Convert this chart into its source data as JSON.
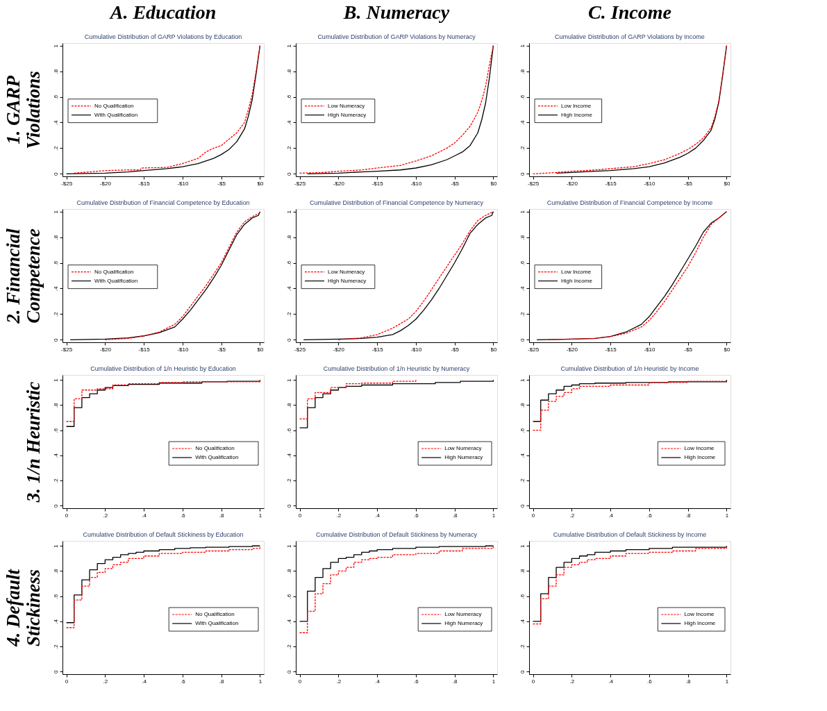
{
  "chart_data": [
    {
      "type": "line",
      "title": "Cumulative Distribution of GARP Violations by Education",
      "annotations": [
        "A. Education"
      ],
      "ylabel": "1. GARP Violations",
      "legend": "left",
      "grid": false,
      "xlim": [
        -25.5,
        0.5
      ],
      "xticks": [
        {
          "value": -25,
          "label": "-$25"
        },
        {
          "value": -20,
          "label": "-$20"
        },
        {
          "value": -15,
          "label": "-$15"
        },
        {
          "value": -10,
          "label": "-$10"
        },
        {
          "value": -5,
          "label": "-$5"
        },
        {
          "value": 0,
          "label": "$0"
        }
      ],
      "ylim": [
        -0.02,
        1.02
      ],
      "yticks": [
        0,
        {
          "value": 0.2,
          "label": ".2"
        },
        {
          "value": 0.4,
          "label": ".4"
        },
        {
          "value": 0.6,
          "label": ".6"
        },
        {
          "value": 0.8,
          "label": ".8"
        },
        1
      ],
      "series": [
        {
          "name": "No Qualification",
          "color": "#ff0000",
          "line_style": "dashed",
          "x": [
            -24,
            -22,
            -20,
            -17,
            -15.5,
            -15.3,
            -12,
            -10,
            -8,
            -7,
            -6,
            -5,
            -4,
            -3,
            -2,
            -1.5,
            -1,
            -0.5,
            0
          ],
          "values": [
            0.005,
            0.015,
            0.025,
            0.03,
            0.03,
            0.045,
            0.05,
            0.08,
            0.12,
            0.17,
            0.2,
            0.22,
            0.27,
            0.32,
            0.4,
            0.5,
            0.62,
            0.8,
            1
          ]
        },
        {
          "name": "With Qualification",
          "color": "#000000",
          "line_style": "solid",
          "x": [
            -25,
            -20,
            -17,
            -15,
            -12,
            -10,
            -8,
            -6,
            -5,
            -4,
            -3,
            -2,
            -1.5,
            -1,
            -0.5,
            0
          ],
          "values": [
            0,
            0.005,
            0.015,
            0.025,
            0.04,
            0.055,
            0.08,
            0.12,
            0.15,
            0.19,
            0.25,
            0.35,
            0.45,
            0.58,
            0.78,
            1
          ]
        }
      ]
    },
    {
      "type": "line",
      "title": "Cumulative Distribution of GARP Violations by Numeracy",
      "annotations": [
        "B. Numeracy"
      ],
      "legend": "left",
      "grid": false,
      "xlim": [
        -25.5,
        0.5
      ],
      "xticks": [
        {
          "value": -25,
          "label": "-$25"
        },
        {
          "value": -20,
          "label": "-$20"
        },
        {
          "value": -15,
          "label": "-$15"
        },
        {
          "value": -10,
          "label": "-$10"
        },
        {
          "value": -5,
          "label": "-$5"
        },
        {
          "value": 0,
          "label": "$0"
        }
      ],
      "ylim": [
        -0.02,
        1.02
      ],
      "yticks": [
        0,
        {
          "value": 0.2,
          "label": ".2"
        },
        {
          "value": 0.4,
          "label": ".4"
        },
        {
          "value": 0.6,
          "label": ".6"
        },
        {
          "value": 0.8,
          "label": ".8"
        },
        1
      ],
      "series": [
        {
          "name": "Low Numeracy",
          "color": "#ff0000",
          "line_style": "dashed",
          "x": [
            -25,
            -22,
            -20,
            -17,
            -15,
            -12,
            -10,
            -8,
            -7,
            -6,
            -5,
            -4,
            -3,
            -2,
            -1.5,
            -1,
            -0.5,
            0
          ],
          "values": [
            0.005,
            0.01,
            0.02,
            0.03,
            0.045,
            0.065,
            0.1,
            0.14,
            0.17,
            0.2,
            0.24,
            0.3,
            0.37,
            0.48,
            0.57,
            0.68,
            0.85,
            1
          ]
        },
        {
          "name": "High Numeracy",
          "color": "#000000",
          "line_style": "solid",
          "x": [
            -24,
            -20,
            -17,
            -15,
            -12,
            -10,
            -8,
            -6,
            -5,
            -4,
            -3,
            -2,
            -1.5,
            -1,
            -0.5,
            0
          ],
          "values": [
            0,
            0.005,
            0.015,
            0.02,
            0.03,
            0.045,
            0.07,
            0.11,
            0.14,
            0.17,
            0.22,
            0.32,
            0.42,
            0.55,
            0.75,
            1
          ]
        }
      ]
    },
    {
      "type": "line",
      "title": "Cumulative Distribution of GARP Violations by Income",
      "annotations": [
        "C. Income"
      ],
      "legend": "left",
      "grid": false,
      "xlim": [
        -25.5,
        0.5
      ],
      "xticks": [
        {
          "value": -25,
          "label": "-$25"
        },
        {
          "value": -20,
          "label": "-$20"
        },
        {
          "value": -15,
          "label": "-$15"
        },
        {
          "value": -10,
          "label": "-$10"
        },
        {
          "value": -5,
          "label": "-$5"
        },
        {
          "value": 0,
          "label": "$0"
        }
      ],
      "ylim": [
        -0.02,
        1.02
      ],
      "yticks": [
        0,
        {
          "value": 0.2,
          "label": ".2"
        },
        {
          "value": 0.4,
          "label": ".4"
        },
        {
          "value": 0.6,
          "label": ".6"
        },
        {
          "value": 0.8,
          "label": ".8"
        },
        1
      ],
      "series": [
        {
          "name": "Low Income",
          "color": "#ff0000",
          "line_style": "dashed",
          "x": [
            -25,
            -22,
            -20,
            -17,
            -15,
            -12,
            -10,
            -8,
            -6,
            -5,
            -4,
            -3,
            -2,
            -1.5,
            -1,
            -0.5,
            0
          ],
          "values": [
            0,
            0.01,
            0.02,
            0.03,
            0.04,
            0.055,
            0.08,
            0.11,
            0.16,
            0.19,
            0.23,
            0.28,
            0.36,
            0.45,
            0.57,
            0.78,
            1
          ]
        },
        {
          "name": "High Income",
          "color": "#000000",
          "line_style": "solid",
          "x": [
            -22,
            -20,
            -17,
            -15,
            -12,
            -10,
            -8,
            -6,
            -5,
            -4,
            -3,
            -2,
            -1.5,
            -1,
            -0.5,
            0
          ],
          "values": [
            0.005,
            0.01,
            0.02,
            0.025,
            0.04,
            0.055,
            0.085,
            0.13,
            0.16,
            0.2,
            0.26,
            0.34,
            0.43,
            0.56,
            0.77,
            1
          ]
        }
      ]
    },
    {
      "type": "line",
      "title": "Cumulative Distribution of Financial Competence by Education",
      "ylabel": "2. Financial Competence",
      "legend": "left",
      "grid": false,
      "xlim": [
        -25.5,
        0.5
      ],
      "xticks": [
        {
          "value": -25,
          "label": "-$25"
        },
        {
          "value": -20,
          "label": "-$20"
        },
        {
          "value": -15,
          "label": "-$15"
        },
        {
          "value": -10,
          "label": "-$10"
        },
        {
          "value": -5,
          "label": "-$5"
        },
        {
          "value": 0,
          "label": "$0"
        }
      ],
      "ylim": [
        -0.02,
        1.02
      ],
      "yticks": [
        0,
        {
          "value": 0.2,
          "label": ".2"
        },
        {
          "value": 0.4,
          "label": ".4"
        },
        {
          "value": 0.6,
          "label": ".6"
        },
        {
          "value": 0.8,
          "label": ".8"
        },
        1
      ],
      "series": [
        {
          "name": "No Qualification",
          "color": "#ff0000",
          "line_style": "dashed",
          "x": [
            -20,
            -17,
            -15,
            -13,
            -11,
            -10,
            -9,
            -8,
            -7,
            -6,
            -5,
            -4,
            -3,
            -2,
            -1,
            0
          ],
          "values": [
            0,
            0.01,
            0.03,
            0.06,
            0.12,
            0.18,
            0.26,
            0.34,
            0.42,
            0.51,
            0.6,
            0.72,
            0.84,
            0.92,
            0.96,
            0.99
          ]
        },
        {
          "name": "With Qualification",
          "color": "#000000",
          "line_style": "solid",
          "x": [
            -24.5,
            -20,
            -17,
            -15,
            -13,
            -11,
            -10,
            -9,
            -8,
            -7,
            -6,
            -5,
            -4,
            -3,
            -2,
            -1,
            -0.2,
            0
          ],
          "values": [
            0,
            0.005,
            0.015,
            0.03,
            0.055,
            0.1,
            0.16,
            0.23,
            0.31,
            0.39,
            0.48,
            0.58,
            0.7,
            0.82,
            0.9,
            0.95,
            0.97,
            1
          ]
        }
      ]
    },
    {
      "type": "line",
      "title": "Cumulative Distribution of Financial Competence by Numeracy",
      "legend": "left",
      "grid": false,
      "xlim": [
        -25.5,
        0.5
      ],
      "xticks": [
        {
          "value": -25,
          "label": "-$25"
        },
        {
          "value": -20,
          "label": "-$20"
        },
        {
          "value": -15,
          "label": "-$15"
        },
        {
          "value": -10,
          "label": "-$10"
        },
        {
          "value": -5,
          "label": "-$5"
        },
        {
          "value": 0,
          "label": "$0"
        }
      ],
      "ylim": [
        -0.02,
        1.02
      ],
      "yticks": [
        0,
        {
          "value": 0.2,
          "label": ".2"
        },
        {
          "value": 0.4,
          "label": ".4"
        },
        {
          "value": 0.6,
          "label": ".6"
        },
        {
          "value": 0.8,
          "label": ".8"
        },
        1
      ],
      "series": [
        {
          "name": "Low Numeracy",
          "color": "#ff0000",
          "line_style": "dashed",
          "x": [
            -20,
            -17,
            -15,
            -13,
            -11,
            -10,
            -9,
            -8,
            -7,
            -6,
            -5,
            -4,
            -3,
            -2,
            -1,
            0
          ],
          "values": [
            0,
            0.015,
            0.04,
            0.09,
            0.16,
            0.22,
            0.3,
            0.39,
            0.48,
            0.57,
            0.66,
            0.75,
            0.85,
            0.93,
            0.97,
            1
          ]
        },
        {
          "name": "High Numeracy",
          "color": "#000000",
          "line_style": "solid",
          "x": [
            -24.5,
            -20,
            -17,
            -15,
            -13,
            -12,
            -11,
            -10,
            -9,
            -8,
            -7,
            -6,
            -5,
            -4,
            -3,
            -2,
            -1,
            -0.2,
            0
          ],
          "values": [
            0,
            0.005,
            0.01,
            0.02,
            0.04,
            0.07,
            0.11,
            0.16,
            0.23,
            0.31,
            0.4,
            0.5,
            0.6,
            0.71,
            0.83,
            0.9,
            0.95,
            0.97,
            1
          ]
        }
      ]
    },
    {
      "type": "line",
      "title": "Cumulative Distribution of Financial Competence by Income",
      "legend": "left",
      "grid": false,
      "xlim": [
        -25.5,
        0.5
      ],
      "xticks": [
        {
          "value": -25,
          "label": "-$25"
        },
        {
          "value": -20,
          "label": "-$20"
        },
        {
          "value": -15,
          "label": "-$15"
        },
        {
          "value": -10,
          "label": "-$10"
        },
        {
          "value": -5,
          "label": "-$5"
        },
        {
          "value": 0,
          "label": "$0"
        }
      ],
      "ylim": [
        -0.02,
        1.02
      ],
      "yticks": [
        0,
        {
          "value": 0.2,
          "label": ".2"
        },
        {
          "value": 0.4,
          "label": ".4"
        },
        {
          "value": 0.6,
          "label": ".6"
        },
        {
          "value": 0.8,
          "label": ".8"
        },
        1
      ],
      "series": [
        {
          "name": "Low Income",
          "color": "#ff0000",
          "line_style": "dashed",
          "x": [
            -23,
            -20,
            -17,
            -15,
            -13,
            -11,
            -10,
            -9,
            -8,
            -7,
            -6,
            -5,
            -4,
            -3,
            -2,
            -1,
            0
          ],
          "values": [
            0,
            0.005,
            0.01,
            0.025,
            0.05,
            0.1,
            0.15,
            0.22,
            0.3,
            0.39,
            0.48,
            0.57,
            0.68,
            0.8,
            0.9,
            0.95,
            1
          ]
        },
        {
          "name": "High Income",
          "color": "#000000",
          "line_style": "solid",
          "x": [
            -24.5,
            -20,
            -17,
            -15,
            -13,
            -11,
            -10,
            -9,
            -8,
            -7,
            -6,
            -5,
            -4,
            -3,
            -2,
            -1,
            0
          ],
          "values": [
            0,
            0.005,
            0.01,
            0.025,
            0.06,
            0.12,
            0.18,
            0.26,
            0.34,
            0.43,
            0.53,
            0.63,
            0.73,
            0.84,
            0.91,
            0.95,
            1
          ]
        }
      ]
    },
    {
      "type": "step",
      "title": "Cumulative Distribution of 1/n Heuristic by Education",
      "ylabel": "3. 1/n Heuristic",
      "legend": "right",
      "grid": false,
      "xlim": [
        -0.02,
        1.02
      ],
      "xticks": [
        0,
        {
          "value": 0.2,
          "label": ".2"
        },
        {
          "value": 0.4,
          "label": ".4"
        },
        {
          "value": 0.6,
          "label": ".6"
        },
        {
          "value": 0.8,
          "label": ".8"
        },
        1
      ],
      "ylim": [
        -0.02,
        1.04
      ],
      "yticks": [
        0,
        {
          "value": 0.2,
          "label": ".2"
        },
        {
          "value": 0.4,
          "label": ".4"
        },
        {
          "value": 0.6,
          "label": ".6"
        },
        {
          "value": 0.8,
          "label": ".8"
        },
        1
      ],
      "series": [
        {
          "name": "No Qualification",
          "color": "#ff0000",
          "line_style": "dashed",
          "x": [
            0,
            0.04,
            0.08,
            0.16,
            0.24,
            0.32,
            0.48,
            0.6,
            1
          ],
          "values": [
            0.67,
            0.85,
            0.92,
            0.93,
            0.96,
            0.97,
            0.98,
            0.985,
            1
          ]
        },
        {
          "name": "With Qualification",
          "color": "#000000",
          "line_style": "solid",
          "x": [
            0,
            0.04,
            0.08,
            0.12,
            0.16,
            0.2,
            0.24,
            0.32,
            0.48,
            0.7,
            0.83,
            1
          ],
          "values": [
            0.63,
            0.78,
            0.86,
            0.89,
            0.92,
            0.94,
            0.955,
            0.965,
            0.975,
            0.985,
            0.99,
            1
          ]
        }
      ]
    },
    {
      "type": "step",
      "title": "Cumulative Distribution of 1/n Heuristic by Numeracy",
      "legend": "right",
      "grid": false,
      "xlim": [
        -0.02,
        1.02
      ],
      "xticks": [
        0,
        {
          "value": 0.2,
          "label": ".2"
        },
        {
          "value": 0.4,
          "label": ".4"
        },
        {
          "value": 0.6,
          "label": ".6"
        },
        {
          "value": 0.8,
          "label": ".8"
        },
        1
      ],
      "ylim": [
        -0.02,
        1.04
      ],
      "yticks": [
        0,
        {
          "value": 0.2,
          "label": ".2"
        },
        {
          "value": 0.4,
          "label": ".4"
        },
        {
          "value": 0.6,
          "label": ".6"
        },
        {
          "value": 0.8,
          "label": ".8"
        },
        1
      ],
      "series": [
        {
          "name": "Low Numeracy",
          "color": "#ff0000",
          "line_style": "dashed",
          "x": [
            0,
            0.04,
            0.08,
            0.16,
            0.24,
            0.32,
            0.48,
            0.6
          ],
          "values": [
            0.69,
            0.85,
            0.9,
            0.94,
            0.97,
            0.975,
            0.99,
            1
          ]
        },
        {
          "name": "High Numeracy",
          "color": "#000000",
          "line_style": "solid",
          "x": [
            0,
            0.04,
            0.08,
            0.12,
            0.16,
            0.2,
            0.24,
            0.32,
            0.48,
            0.7,
            0.83,
            1
          ],
          "values": [
            0.62,
            0.78,
            0.86,
            0.89,
            0.92,
            0.94,
            0.95,
            0.96,
            0.97,
            0.98,
            0.99,
            1
          ]
        }
      ]
    },
    {
      "type": "step",
      "title": "Cumulative Distribution of 1/n Heuristic by Income",
      "legend": "right",
      "grid": false,
      "xlim": [
        -0.02,
        1.02
      ],
      "xticks": [
        0,
        {
          "value": 0.2,
          "label": ".2"
        },
        {
          "value": 0.4,
          "label": ".4"
        },
        {
          "value": 0.6,
          "label": ".6"
        },
        {
          "value": 0.8,
          "label": ".8"
        },
        1
      ],
      "ylim": [
        -0.02,
        1.04
      ],
      "yticks": [
        0,
        {
          "value": 0.2,
          "label": ".2"
        },
        {
          "value": 0.4,
          "label": ".4"
        },
        {
          "value": 0.6,
          "label": ".6"
        },
        {
          "value": 0.8,
          "label": ".8"
        },
        1
      ],
      "series": [
        {
          "name": "Low Income",
          "color": "#ff0000",
          "line_style": "dashed",
          "x": [
            0,
            0.04,
            0.08,
            0.12,
            0.16,
            0.2,
            0.24,
            0.4,
            0.6,
            0.8,
            1
          ],
          "values": [
            0.6,
            0.76,
            0.83,
            0.87,
            0.9,
            0.93,
            0.95,
            0.96,
            0.98,
            0.99,
            1
          ]
        },
        {
          "name": "High Income",
          "color": "#000000",
          "line_style": "solid",
          "x": [
            0,
            0.04,
            0.08,
            0.12,
            0.16,
            0.2,
            0.24,
            0.32,
            0.48,
            0.7,
            1
          ],
          "values": [
            0.67,
            0.84,
            0.89,
            0.92,
            0.95,
            0.96,
            0.97,
            0.975,
            0.98,
            0.985,
            1
          ]
        }
      ]
    },
    {
      "type": "step",
      "title": "Cumulative Distribution of Default Stickiness by Education",
      "ylabel": "4. Default Stickiness",
      "legend": "right",
      "grid": false,
      "xlim": [
        -0.02,
        1.02
      ],
      "xticks": [
        0,
        {
          "value": 0.2,
          "label": ".2"
        },
        {
          "value": 0.4,
          "label": ".4"
        },
        {
          "value": 0.6,
          "label": ".6"
        },
        {
          "value": 0.8,
          "label": ".8"
        },
        1
      ],
      "ylim": [
        -0.02,
        1.04
      ],
      "yticks": [
        0,
        {
          "value": 0.2,
          "label": ".2"
        },
        {
          "value": 0.4,
          "label": ".4"
        },
        {
          "value": 0.6,
          "label": ".6"
        },
        {
          "value": 0.8,
          "label": ".8"
        },
        1
      ],
      "series": [
        {
          "name": "No Qualification",
          "color": "#ff0000",
          "line_style": "dashed",
          "x": [
            0,
            0.04,
            0.08,
            0.12,
            0.16,
            0.2,
            0.24,
            0.28,
            0.32,
            0.4,
            0.48,
            0.6,
            0.72,
            0.84,
            0.96,
            1
          ],
          "values": [
            0.35,
            0.57,
            0.68,
            0.75,
            0.79,
            0.82,
            0.85,
            0.87,
            0.9,
            0.92,
            0.94,
            0.95,
            0.96,
            0.97,
            0.98,
            1
          ]
        },
        {
          "name": "With Qualification",
          "color": "#000000",
          "line_style": "solid",
          "x": [
            0,
            0.04,
            0.08,
            0.12,
            0.16,
            0.2,
            0.24,
            0.28,
            0.32,
            0.36,
            0.4,
            0.48,
            0.56,
            0.64,
            0.72,
            0.84,
            0.96,
            1
          ],
          "values": [
            0.39,
            0.61,
            0.73,
            0.81,
            0.86,
            0.89,
            0.91,
            0.93,
            0.94,
            0.95,
            0.96,
            0.97,
            0.98,
            0.985,
            0.99,
            0.995,
            1,
            1
          ]
        }
      ]
    },
    {
      "type": "step",
      "title": "Cumulative Distribution of Default Stickiness by Numeracy",
      "legend": "right",
      "grid": false,
      "xlim": [
        -0.02,
        1.02
      ],
      "xticks": [
        0,
        {
          "value": 0.2,
          "label": ".2"
        },
        {
          "value": 0.4,
          "label": ".4"
        },
        {
          "value": 0.6,
          "label": ".6"
        },
        {
          "value": 0.8,
          "label": ".8"
        },
        1
      ],
      "ylim": [
        -0.02,
        1.04
      ],
      "yticks": [
        0,
        {
          "value": 0.2,
          "label": ".2"
        },
        {
          "value": 0.4,
          "label": ".4"
        },
        {
          "value": 0.6,
          "label": ".6"
        },
        {
          "value": 0.8,
          "label": ".8"
        },
        1
      ],
      "series": [
        {
          "name": "Low Numeracy",
          "color": "#ff0000",
          "line_style": "dashed",
          "x": [
            0,
            0.04,
            0.08,
            0.12,
            0.16,
            0.2,
            0.24,
            0.28,
            0.32,
            0.36,
            0.4,
            0.48,
            0.6,
            0.72,
            0.84,
            1
          ],
          "values": [
            0.31,
            0.48,
            0.62,
            0.7,
            0.77,
            0.8,
            0.83,
            0.87,
            0.89,
            0.9,
            0.91,
            0.93,
            0.94,
            0.96,
            0.98,
            1
          ]
        },
        {
          "name": "High Numeracy",
          "color": "#000000",
          "line_style": "solid",
          "x": [
            0,
            0.04,
            0.08,
            0.12,
            0.16,
            0.2,
            0.24,
            0.28,
            0.32,
            0.36,
            0.4,
            0.48,
            0.6,
            0.72,
            0.96,
            1
          ],
          "values": [
            0.4,
            0.64,
            0.75,
            0.82,
            0.87,
            0.9,
            0.91,
            0.93,
            0.95,
            0.96,
            0.97,
            0.98,
            0.99,
            0.995,
            1,
            1
          ]
        }
      ]
    },
    {
      "type": "step",
      "title": "Cumulative Distribution of Default Stickiness by Income",
      "legend": "right",
      "grid": false,
      "xlim": [
        -0.02,
        1.02
      ],
      "xticks": [
        0,
        {
          "value": 0.2,
          "label": ".2"
        },
        {
          "value": 0.4,
          "label": ".4"
        },
        {
          "value": 0.6,
          "label": ".6"
        },
        {
          "value": 0.8,
          "label": ".8"
        },
        1
      ],
      "ylim": [
        -0.02,
        1.04
      ],
      "yticks": [
        0,
        {
          "value": 0.2,
          "label": ".2"
        },
        {
          "value": 0.4,
          "label": ".4"
        },
        {
          "value": 0.6,
          "label": ".6"
        },
        {
          "value": 0.8,
          "label": ".8"
        },
        1
      ],
      "series": [
        {
          "name": "Low Income",
          "color": "#ff0000",
          "line_style": "dashed",
          "x": [
            0,
            0.04,
            0.08,
            0.12,
            0.16,
            0.2,
            0.24,
            0.28,
            0.32,
            0.4,
            0.48,
            0.6,
            0.72,
            0.84,
            1
          ],
          "values": [
            0.38,
            0.58,
            0.68,
            0.77,
            0.83,
            0.85,
            0.87,
            0.89,
            0.9,
            0.92,
            0.94,
            0.95,
            0.96,
            0.98,
            1
          ]
        },
        {
          "name": "High Income",
          "color": "#000000",
          "line_style": "solid",
          "x": [
            0,
            0.04,
            0.08,
            0.12,
            0.16,
            0.2,
            0.24,
            0.28,
            0.32,
            0.4,
            0.48,
            0.6,
            0.72,
            1
          ],
          "values": [
            0.4,
            0.62,
            0.75,
            0.83,
            0.87,
            0.9,
            0.92,
            0.93,
            0.95,
            0.96,
            0.97,
            0.98,
            0.99,
            1
          ]
        }
      ]
    }
  ]
}
